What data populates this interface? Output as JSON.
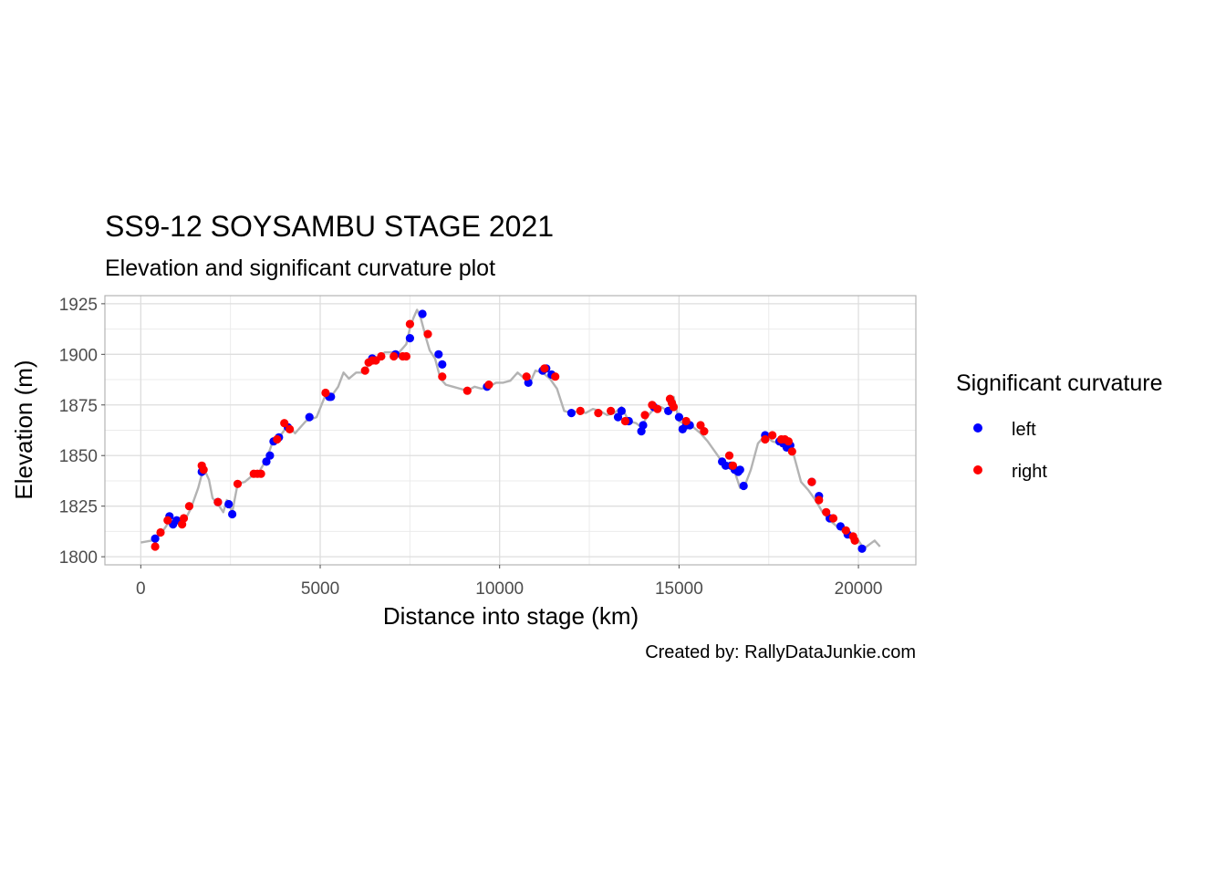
{
  "chart_data": {
    "type": "scatter",
    "title": "SS9-12 SOYSAMBU STAGE 2021",
    "subtitle": "Elevation and significant curvature plot",
    "xlabel": "Distance into stage (km)",
    "ylabel": "Elevation (m)",
    "caption": "Created by: RallyDataJunkie.com",
    "xlim": [
      -1000,
      21600
    ],
    "ylim": [
      1796,
      1929
    ],
    "x_ticks": [
      0,
      5000,
      10000,
      15000,
      20000
    ],
    "x_tick_labels": [
      "0",
      "5000",
      "10000",
      "15000",
      "20000"
    ],
    "y_ticks": [
      1800,
      1825,
      1850,
      1875,
      1900,
      1925
    ],
    "y_tick_labels": [
      "1800",
      "1825",
      "1850",
      "1875",
      "1900",
      "1925"
    ],
    "grid": true,
    "legend": {
      "title": "Significant curvature",
      "placement": "right",
      "entries": [
        {
          "label": "left",
          "color": "#0000ff"
        },
        {
          "label": "right",
          "color": "#ff0000"
        }
      ]
    },
    "line_color": "#b3b3b3",
    "series": [
      {
        "name": "elevation",
        "type": "line",
        "x": [
          0,
          300,
          550,
          700,
          850,
          1000,
          1200,
          1400,
          1600,
          1750,
          1900,
          2000,
          2150,
          2300,
          2400,
          2550,
          2700,
          2900,
          3100,
          3300,
          3500,
          3700,
          3900,
          4100,
          4300,
          4600,
          4900,
          5150,
          5300,
          5500,
          5650,
          5800,
          6000,
          6200,
          6400,
          6600,
          6800,
          7000,
          7200,
          7400,
          7500,
          7600,
          7700,
          7800,
          7950,
          8050,
          8200,
          8350,
          8500,
          8700,
          8900,
          9100,
          9300,
          9500,
          9700,
          9900,
          10100,
          10300,
          10500,
          10700,
          10850,
          11000,
          11200,
          11400,
          11600,
          11800,
          12000,
          12200,
          12400,
          12600,
          12800,
          13000,
          13200,
          13400,
          13600,
          13800,
          13950,
          14100,
          14300,
          14500,
          14700,
          14850,
          15000,
          15200,
          15400,
          15600,
          15800,
          16000,
          16200,
          16400,
          16550,
          16700,
          16850,
          17000,
          17200,
          17400,
          17600,
          17800,
          18000,
          18200,
          18400,
          18600,
          18800,
          19000,
          19200,
          19400,
          19600,
          19800,
          20000,
          20150,
          20300,
          20450,
          20600
        ],
        "y": [
          1807,
          1808,
          1811,
          1815,
          1819,
          1818,
          1817,
          1824,
          1834,
          1844,
          1838,
          1829,
          1826,
          1822,
          1828,
          1822,
          1836,
          1837,
          1840,
          1842,
          1848,
          1858,
          1860,
          1865,
          1861,
          1867,
          1869,
          1880,
          1879,
          1884,
          1891,
          1888,
          1891,
          1891,
          1896,
          1898,
          1901,
          1901,
          1901,
          1905,
          1913,
          1918,
          1922,
          1918,
          1908,
          1902,
          1898,
          1888,
          1885,
          1884,
          1883,
          1882,
          1884,
          1883,
          1884,
          1886,
          1886,
          1887,
          1891,
          1888,
          1886,
          1892,
          1891,
          1888,
          1883,
          1872,
          1871,
          1872,
          1871,
          1873,
          1872,
          1870,
          1871,
          1874,
          1867,
          1866,
          1864,
          1869,
          1873,
          1874,
          1872,
          1879,
          1867,
          1865,
          1864,
          1861,
          1857,
          1852,
          1847,
          1844,
          1842,
          1834,
          1836,
          1843,
          1856,
          1860,
          1857,
          1856,
          1854,
          1850,
          1837,
          1833,
          1828,
          1822,
          1818,
          1815,
          1812,
          1810,
          1808,
          1804,
          1806,
          1808,
          1805
        ]
      },
      {
        "name": "left",
        "type": "scatter",
        "color": "#0000ff",
        "x": [
          400,
          800,
          900,
          1000,
          1700,
          2150,
          2450,
          2550,
          3500,
          3600,
          3700,
          3850,
          4100,
          4700,
          5250,
          5300,
          6450,
          7100,
          7500,
          7850,
          8300,
          8400,
          9650,
          10800,
          11200,
          11300,
          11450,
          12000,
          13300,
          13400,
          13600,
          13950,
          14000,
          14300,
          14700,
          15000,
          15100,
          15200,
          15300,
          16200,
          16300,
          16450,
          16550,
          16650,
          16700,
          16800,
          17400,
          17800,
          17900,
          18000,
          18100,
          18700,
          18900,
          19200,
          19500,
          19700,
          20100
        ],
        "y": [
          1809,
          1820,
          1816,
          1818,
          1842,
          1827,
          1826,
          1821,
          1847,
          1850,
          1857,
          1859,
          1864,
          1869,
          1879,
          1879,
          1898,
          1900,
          1908,
          1920,
          1900,
          1895,
          1884,
          1886,
          1892,
          1893,
          1890,
          1871,
          1869,
          1872,
          1867,
          1862,
          1865,
          1874,
          1872,
          1869,
          1863,
          1865,
          1865,
          1847,
          1845,
          1845,
          1843,
          1842,
          1843,
          1835,
          1860,
          1857,
          1856,
          1854,
          1855,
          1837,
          1830,
          1819,
          1815,
          1811,
          1804
        ]
      },
      {
        "name": "right",
        "type": "scatter",
        "color": "#ff0000",
        "x": [
          400,
          550,
          750,
          1150,
          1200,
          1350,
          1700,
          1750,
          2150,
          2700,
          3150,
          3250,
          3350,
          3800,
          4000,
          4150,
          5150,
          6250,
          6350,
          6450,
          6550,
          6700,
          7050,
          7300,
          7400,
          7500,
          8000,
          8400,
          9100,
          9700,
          10750,
          11250,
          11550,
          12250,
          12750,
          13100,
          13500,
          14050,
          14250,
          14400,
          14750,
          14800,
          14850,
          15200,
          15600,
          15700,
          16400,
          16500,
          17400,
          17600,
          17850,
          17950,
          18050,
          18150,
          18700,
          18900,
          19100,
          19300,
          19650,
          19850,
          19900
        ],
        "y": [
          1805,
          1812,
          1818,
          1816,
          1819,
          1825,
          1845,
          1843,
          1827,
          1836,
          1841,
          1841,
          1841,
          1858,
          1866,
          1863,
          1881,
          1892,
          1896,
          1897,
          1897,
          1899,
          1899,
          1899,
          1899,
          1915,
          1910,
          1889,
          1882,
          1885,
          1889,
          1893,
          1889,
          1872,
          1871,
          1872,
          1867,
          1870,
          1875,
          1873,
          1878,
          1876,
          1874,
          1867,
          1865,
          1862,
          1850,
          1845,
          1858,
          1860,
          1858,
          1858,
          1857,
          1852,
          1837,
          1828,
          1822,
          1819,
          1813,
          1810,
          1808
        ]
      }
    ]
  }
}
